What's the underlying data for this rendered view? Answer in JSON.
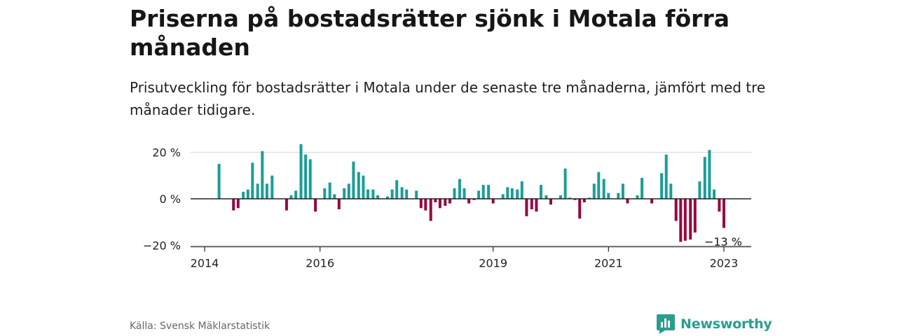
{
  "title": "Priserna på bostadsrätter sjönk i Motala förra månaden",
  "subtitle": "Prisutveckling för bostadsrätter i Motala under de senaste tre månaderna, jämfört med tre månader tidigare.",
  "source": "Källa: Svensk Mäklarstatistik",
  "brand": "Newsworthy",
  "colors": {
    "positive": "#1a9e97",
    "negative": "#96063f",
    "brand": "#2a9d8f"
  },
  "chart_data": {
    "type": "bar",
    "ylim": [
      -20,
      20
    ],
    "y_ticks": [
      {
        "value": 20,
        "label": "20 %"
      },
      {
        "value": 0,
        "label": "0 %"
      },
      {
        "value": -20,
        "label": "−20 %"
      }
    ],
    "x_ticks": [
      {
        "value": 2014.0,
        "label": "2014"
      },
      {
        "value": 2016.0,
        "label": "2016"
      },
      {
        "value": 2019.0,
        "label": "2019"
      },
      {
        "value": 2021.0,
        "label": "2021"
      },
      {
        "value": 2023.0,
        "label": "2023"
      }
    ],
    "annotation": {
      "text": "−13 %",
      "x": 2023.0,
      "y": -13
    },
    "x": [
      2014.25,
      2014.33,
      2014.42,
      2014.5,
      2014.58,
      2014.67,
      2014.75,
      2014.83,
      2014.92,
      2015.0,
      2015.08,
      2015.17,
      2015.25,
      2015.33,
      2015.42,
      2015.5,
      2015.58,
      2015.67,
      2015.75,
      2015.83,
      2015.92,
      2016.0,
      2016.08,
      2016.17,
      2016.25,
      2016.33,
      2016.42,
      2016.5,
      2016.58,
      2016.67,
      2016.75,
      2016.83,
      2016.92,
      2017.0,
      2017.08,
      2017.17,
      2017.25,
      2017.33,
      2017.42,
      2017.5,
      2017.58,
      2017.67,
      2017.75,
      2017.83,
      2017.92,
      2018.0,
      2018.08,
      2018.17,
      2018.25,
      2018.33,
      2018.42,
      2018.5,
      2018.58,
      2018.67,
      2018.75,
      2018.83,
      2018.92,
      2019.0,
      2019.08,
      2019.17,
      2019.25,
      2019.33,
      2019.42,
      2019.5,
      2019.58,
      2019.67,
      2019.75,
      2019.83,
      2019.92,
      2020.0,
      2020.08,
      2020.17,
      2020.25,
      2020.33,
      2020.42,
      2020.5,
      2020.58,
      2020.67,
      2020.75,
      2020.83,
      2020.92,
      2021.0,
      2021.08,
      2021.17,
      2021.25,
      2021.33,
      2021.42,
      2021.5,
      2021.58,
      2021.67,
      2021.75,
      2021.83,
      2021.92,
      2022.0,
      2022.08,
      2022.17,
      2022.25,
      2022.33,
      2022.42,
      2022.5,
      2022.58,
      2022.67,
      2022.75,
      2022.83,
      2022.92,
      2023.0
    ],
    "values": [
      15,
      0,
      0,
      -5,
      -4,
      3,
      4,
      15.5,
      6.5,
      20.5,
      6.5,
      10,
      0,
      0,
      -5,
      1.5,
      3.5,
      23.5,
      19,
      17,
      -5.5,
      0,
      4.5,
      7,
      2,
      -4.5,
      4.5,
      6.5,
      16,
      11.5,
      10,
      4,
      4,
      1.5,
      0,
      1,
      4,
      8,
      5,
      4,
      0,
      3.5,
      -4,
      -5,
      -9.5,
      -1.5,
      -4,
      -3,
      -2,
      4.5,
      8.5,
      4.5,
      -2,
      -0.5,
      3.5,
      6,
      6,
      -2,
      0,
      2,
      5,
      4.5,
      4,
      7.5,
      -7.5,
      -4.5,
      -5.5,
      6,
      1.5,
      -2.5,
      0,
      1.5,
      13,
      0.5,
      -0.5,
      -8.5,
      -1.5,
      0.5,
      6.5,
      11.5,
      8.5,
      2.5,
      0,
      2.5,
      6.5,
      -2,
      0,
      1.5,
      9,
      0,
      -2,
      0,
      11,
      19,
      6.5,
      -9.5,
      -18.5,
      -18,
      -17.5,
      -14.5,
      7.5,
      18,
      21,
      4,
      -5.5,
      -12.5
    ]
  }
}
